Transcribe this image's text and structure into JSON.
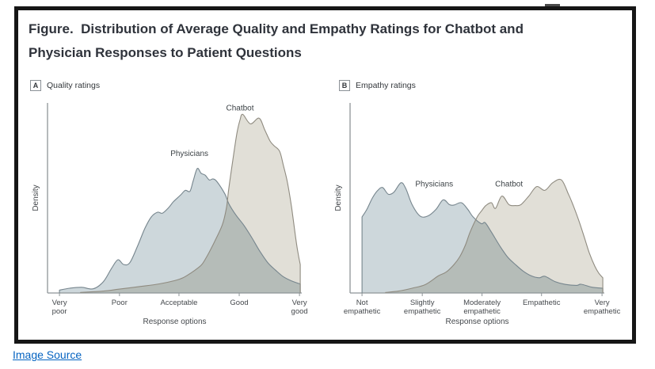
{
  "page": {
    "link": {
      "label": "Image Source"
    }
  },
  "figure": {
    "title_line1": "Figure.  Distribution of Average Quality and Empathy Ratings for Chatbot and",
    "title_line2": "Physician Responses to Patient Questions"
  },
  "theme": {
    "frame_border": "#161616",
    "title_color": "#2f333b",
    "axis_color": "#8e9598",
    "text_color": "#45494d",
    "label_color": "#3d4347",
    "link_color": "#0563c1",
    "physicians_fill": "#cdd7db",
    "physicians_stroke": "#76858d",
    "chatbot_fill": "#e1dfd7",
    "chatbot_stroke": "#8f8b80",
    "overlap_note": "chatbot layer multiplies over physicians layer giving #b4bcb8"
  },
  "chart_data": [
    {
      "panel": "A",
      "type": "area",
      "title": "Quality ratings",
      "xlabel": "Response options",
      "ylabel": "Density",
      "categories": [
        "Very poor",
        "Poor",
        "Acceptable",
        "Good",
        "Very good"
      ],
      "tick_positions_pct": [
        4.7,
        28.3,
        51.7,
        75.4,
        99.1
      ],
      "x_unit": "percent_of_axis",
      "ylim": [
        0,
        100
      ],
      "grid": false,
      "legend": "inline-labels",
      "series": [
        {
          "name": "Physicians",
          "label_pos": [
            55.8,
            72
          ],
          "fill": "#cdd7db",
          "stroke": "#76858d",
          "points": [
            [
              4.7,
              1.5
            ],
            [
              8.7,
              2.5
            ],
            [
              13.4,
              3
            ],
            [
              18,
              2.2
            ],
            [
              22,
              6
            ],
            [
              25.2,
              13
            ],
            [
              27.7,
              17.5
            ],
            [
              29.9,
              15
            ],
            [
              32.4,
              16
            ],
            [
              35.5,
              25
            ],
            [
              38.3,
              34
            ],
            [
              40.8,
              40
            ],
            [
              43.3,
              42.5
            ],
            [
              45.2,
              42
            ],
            [
              47.7,
              45
            ],
            [
              49.5,
              48
            ],
            [
              52.3,
              51.5
            ],
            [
              54.2,
              54
            ],
            [
              56,
              53.5
            ],
            [
              57.3,
              59
            ],
            [
              58.9,
              65.5
            ],
            [
              60.4,
              63
            ],
            [
              62,
              62
            ],
            [
              63.6,
              59.5
            ],
            [
              65.1,
              60
            ],
            [
              66.7,
              58.5
            ],
            [
              69.8,
              52
            ],
            [
              71.3,
              47
            ],
            [
              74.1,
              41
            ],
            [
              77.3,
              35.5
            ],
            [
              80.4,
              29
            ],
            [
              83.5,
              22
            ],
            [
              86.6,
              16
            ],
            [
              89.7,
              12
            ],
            [
              92.8,
              8.5
            ],
            [
              95.9,
              6.4
            ],
            [
              99.4,
              4.7
            ]
          ]
        },
        {
          "name": "Chatbot",
          "label_pos": [
            75.7,
            96
          ],
          "fill": "#e1dfd7",
          "stroke": "#8f8b80",
          "blend": "multiply",
          "points": [
            [
              13,
              0.3
            ],
            [
              22,
              1
            ],
            [
              28,
              2
            ],
            [
              37,
              3.5
            ],
            [
              44,
              4.8
            ],
            [
              50,
              6.5
            ],
            [
              53.3,
              8
            ],
            [
              56.4,
              10.5
            ],
            [
              59.5,
              13.5
            ],
            [
              61,
              15.5
            ],
            [
              62.6,
              19
            ],
            [
              64.2,
              23
            ],
            [
              65.7,
              27
            ],
            [
              68.8,
              36
            ],
            [
              70.4,
              45
            ],
            [
              71.3,
              55
            ],
            [
              72.9,
              70
            ],
            [
              74.5,
              84
            ],
            [
              75.7,
              91
            ],
            [
              76.8,
              94
            ],
            [
              79.8,
              89
            ],
            [
              83.2,
              92
            ],
            [
              85.4,
              86
            ],
            [
              87.5,
              80
            ],
            [
              89.1,
              77.5
            ],
            [
              91.3,
              74.5
            ],
            [
              92.8,
              67
            ],
            [
              94.4,
              58
            ],
            [
              96,
              45
            ],
            [
              97.5,
              30
            ],
            [
              98.4,
              22
            ],
            [
              99.4,
              15
            ]
          ]
        }
      ]
    },
    {
      "panel": "B",
      "type": "area",
      "title": "Empathy ratings",
      "xlabel": "Response options",
      "ylabel": "Density",
      "categories": [
        "Not empathetic",
        "Slightly empathetic",
        "Moderately empathetic",
        "Empathetic",
        "Very empathetic"
      ],
      "tick_positions_pct": [
        4.7,
        28.4,
        51.9,
        75.3,
        99.1
      ],
      "x_unit": "percent_of_axis",
      "ylim": [
        0,
        100
      ],
      "grid": false,
      "legend": "inline-labels",
      "series": [
        {
          "name": "Physicians",
          "label_pos": [
            33.1,
            56
          ],
          "fill": "#cdd7db",
          "stroke": "#76858d",
          "points": [
            [
              4.7,
              40
            ],
            [
              6.6,
              44
            ],
            [
              8.8,
              50
            ],
            [
              10.9,
              54
            ],
            [
              12.8,
              55.5
            ],
            [
              15,
              52
            ],
            [
              17.2,
              53
            ],
            [
              20,
              58
            ],
            [
              21.9,
              55
            ],
            [
              24.4,
              46.5
            ],
            [
              27.5,
              40.5
            ],
            [
              30.6,
              40.5
            ],
            [
              33.8,
              44
            ],
            [
              36.6,
              49
            ],
            [
              39.1,
              46.5
            ],
            [
              40.9,
              46.3
            ],
            [
              43.8,
              47.5
            ],
            [
              46.3,
              44
            ],
            [
              48.4,
              40
            ],
            [
              51.6,
              36.5
            ],
            [
              53.1,
              37
            ],
            [
              55.6,
              32
            ],
            [
              58.8,
              25
            ],
            [
              61.9,
              19
            ],
            [
              65,
              15
            ],
            [
              68.1,
              11.5
            ],
            [
              71.3,
              9
            ],
            [
              74.4,
              8
            ],
            [
              76.6,
              8.8
            ],
            [
              80.6,
              6
            ],
            [
              84.7,
              4.5
            ],
            [
              89.1,
              4
            ],
            [
              90.9,
              4.6
            ],
            [
              95.3,
              3
            ],
            [
              99.4,
              2.5
            ]
          ]
        },
        {
          "name": "Chatbot",
          "label_pos": [
            62.5,
            56
          ],
          "fill": "#e1dfd7",
          "stroke": "#8f8b80",
          "blend": "multiply",
          "points": [
            [
              14,
              0.3
            ],
            [
              19.1,
              1
            ],
            [
              24.4,
              2.5
            ],
            [
              29.7,
              4.5
            ],
            [
              34.7,
              9
            ],
            [
              37.8,
              11
            ],
            [
              40.9,
              15
            ],
            [
              43.1,
              19
            ],
            [
              45.3,
              25
            ],
            [
              47.2,
              32
            ],
            [
              50,
              40
            ],
            [
              51.6,
              43
            ],
            [
              53.4,
              46
            ],
            [
              55.6,
              47.5
            ],
            [
              57.2,
              44.5
            ],
            [
              59.7,
              51
            ],
            [
              62.5,
              46.5
            ],
            [
              65,
              46
            ],
            [
              67.2,
              46.5
            ],
            [
              70.3,
              51
            ],
            [
              73.4,
              56
            ],
            [
              76.6,
              54
            ],
            [
              79.7,
              58
            ],
            [
              83.1,
              59.5
            ],
            [
              85.9,
              52
            ],
            [
              87.8,
              46
            ],
            [
              90,
              38
            ],
            [
              92.2,
              29
            ],
            [
              94.1,
              21
            ],
            [
              96.3,
              14
            ],
            [
              97.8,
              10.5
            ],
            [
              99.4,
              8
            ]
          ]
        }
      ]
    }
  ]
}
